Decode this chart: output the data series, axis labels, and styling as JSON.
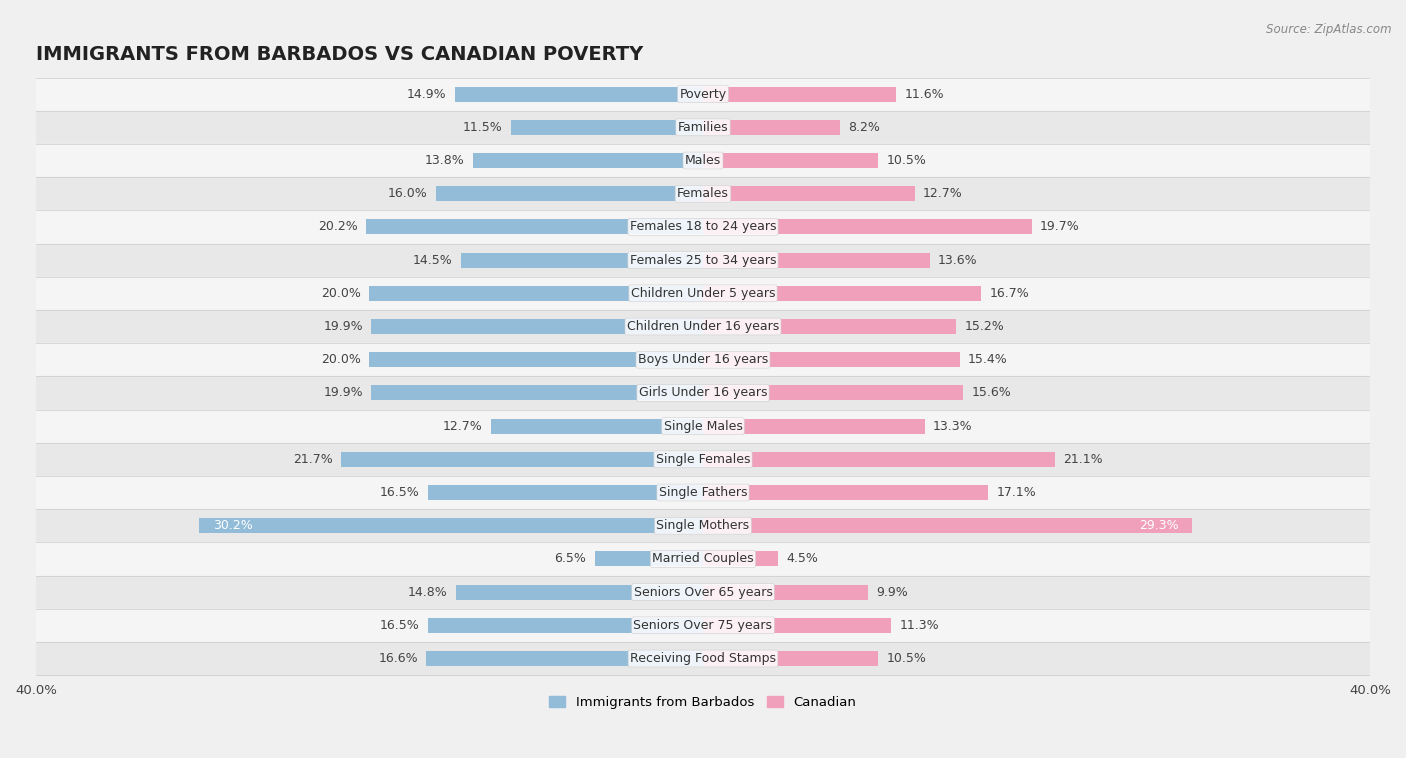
{
  "title": "IMMIGRANTS FROM BARBADOS VS CANADIAN POVERTY",
  "source": "Source: ZipAtlas.com",
  "categories": [
    "Poverty",
    "Families",
    "Males",
    "Females",
    "Females 18 to 24 years",
    "Females 25 to 34 years",
    "Children Under 5 years",
    "Children Under 16 years",
    "Boys Under 16 years",
    "Girls Under 16 years",
    "Single Males",
    "Single Females",
    "Single Fathers",
    "Single Mothers",
    "Married Couples",
    "Seniors Over 65 years",
    "Seniors Over 75 years",
    "Receiving Food Stamps"
  ],
  "left_values": [
    14.9,
    11.5,
    13.8,
    16.0,
    20.2,
    14.5,
    20.0,
    19.9,
    20.0,
    19.9,
    12.7,
    21.7,
    16.5,
    30.2,
    6.5,
    14.8,
    16.5,
    16.6
  ],
  "right_values": [
    11.6,
    8.2,
    10.5,
    12.7,
    19.7,
    13.6,
    16.7,
    15.2,
    15.4,
    15.6,
    13.3,
    21.1,
    17.1,
    29.3,
    4.5,
    9.9,
    11.3,
    10.5
  ],
  "left_color": "#92bcd8",
  "right_color": "#f0a0ba",
  "row_bg_odd": "#f5f5f5",
  "row_bg_even": "#e8e8e8",
  "fig_bg": "#f0f0f0",
  "axis_max": 40.0,
  "left_label": "Immigrants from Barbados",
  "right_label": "Canadian",
  "title_fontsize": 14,
  "value_fontsize": 9,
  "category_fontsize": 9,
  "source_fontsize": 8.5
}
